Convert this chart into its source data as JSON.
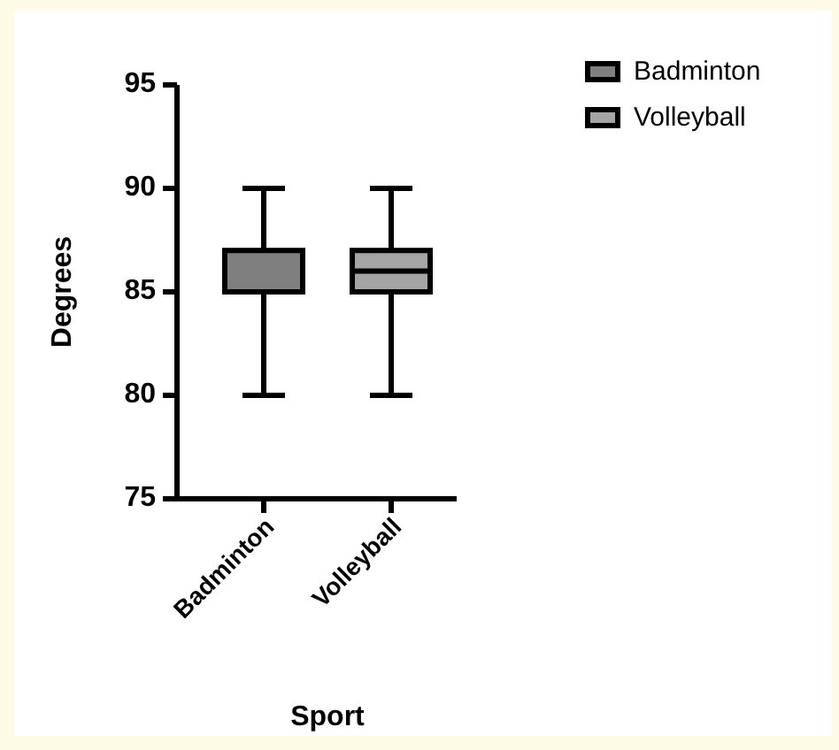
{
  "chart_data": {
    "type": "box",
    "xlabel": "Sport",
    "ylabel": "Degrees",
    "categories": [
      "Badminton",
      "Volleyball"
    ],
    "ylim": [
      75,
      95
    ],
    "yticks": [
      75,
      80,
      85,
      90,
      95
    ],
    "grid": false,
    "legend": "top right",
    "series": [
      {
        "name": "Badminton",
        "color": "#7f7f7f",
        "boxes": [
          {
            "low": 80,
            "q1": 85,
            "median": 85,
            "q3": 87,
            "high": 90
          },
          null
        ]
      },
      {
        "name": "Volleyball",
        "color": "#a5a5a5",
        "boxes": [
          null,
          {
            "low": 80,
            "q1": 85,
            "median": 86,
            "q3": 87,
            "high": 90
          }
        ]
      }
    ]
  }
}
